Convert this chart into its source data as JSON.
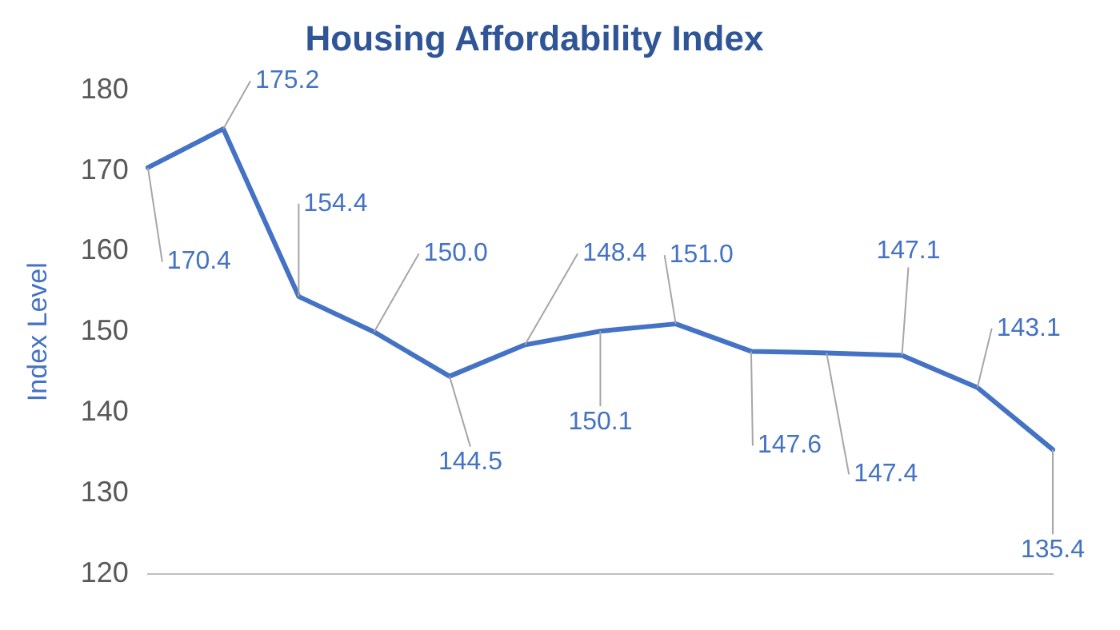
{
  "chart_data": {
    "type": "line",
    "title": "Housing Affordability Index",
    "ylabel": "Index Level",
    "categories": [
      null,
      null,
      null,
      null,
      null,
      null,
      null,
      null,
      null,
      null,
      null,
      null,
      null
    ],
    "series": [
      {
        "color": "#4472c4",
        "values": [
          170.4,
          175.2,
          154.4,
          150.0,
          144.5,
          148.4,
          150.1,
          151.0,
          147.6,
          147.4,
          147.1,
          143.1,
          135.4
        ],
        "value_labels": [
          "170.4",
          "175.2",
          "154.4",
          "150.0",
          "144.5",
          "148.4",
          "150.1",
          "151.0",
          "147.6",
          "147.4",
          "147.1",
          "143.1",
          "135.4"
        ]
      }
    ],
    "ylim": [
      120,
      180
    ],
    "yticks": [
      120,
      130,
      140,
      150,
      160,
      170,
      180
    ],
    "grid": false,
    "legend": false,
    "marker": "none",
    "line_style": "solid"
  }
}
